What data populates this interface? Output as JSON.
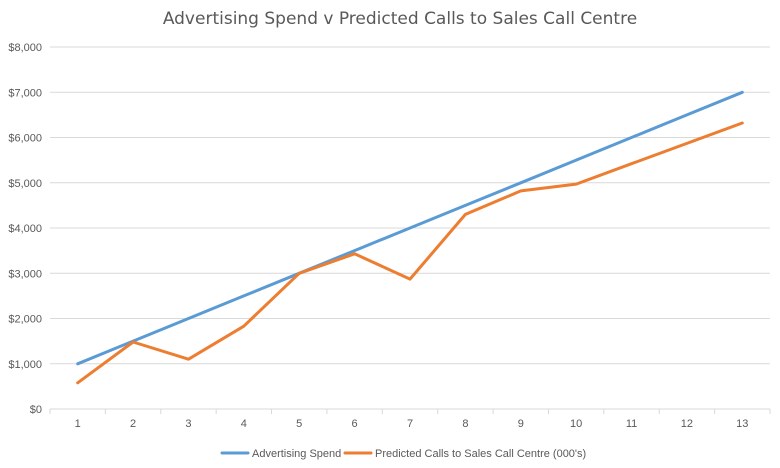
{
  "chart_data": {
    "type": "line",
    "title": "Advertising Spend v Predicted Calls to Sales Call Centre",
    "xlabel": "",
    "ylabel": "",
    "categories": [
      "1",
      "2",
      "3",
      "4",
      "5",
      "6",
      "7",
      "8",
      "9",
      "10",
      "11",
      "12",
      "13"
    ],
    "ylim": [
      0,
      8000
    ],
    "y_ticks": [
      0,
      1000,
      2000,
      3000,
      4000,
      5000,
      6000,
      7000,
      8000
    ],
    "y_tick_labels": [
      "$0",
      "$1,000",
      "$2,000",
      "$3,000",
      "$4,000",
      "$5,000",
      "$6,000",
      "$7,000",
      "$8,000"
    ],
    "grid": true,
    "legend_position": "bottom",
    "series": [
      {
        "name": "Advertising Spend",
        "color": "#5b9bd5",
        "values": [
          1000,
          1500,
          2000,
          2500,
          3000,
          3500,
          4000,
          4500,
          5000,
          5500,
          6000,
          6500,
          7000
        ]
      },
      {
        "name": "Predicted Calls to Sales Call Centre (000's)",
        "color": "#ed7d31",
        "values": [
          580,
          1480,
          1100,
          1830,
          3000,
          3430,
          2870,
          4300,
          4820,
          4970,
          5420,
          5870,
          6320
        ]
      }
    ]
  }
}
